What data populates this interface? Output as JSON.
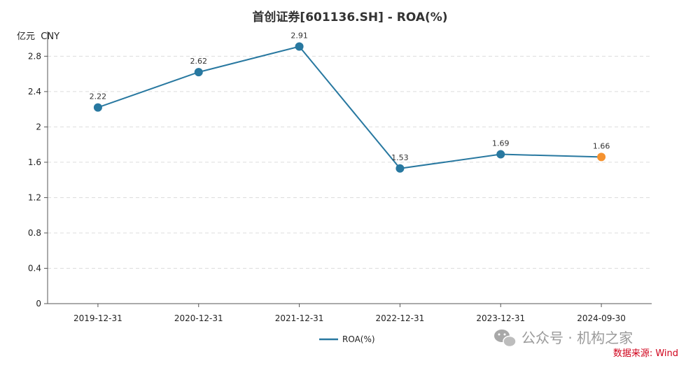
{
  "chart_data": {
    "type": "line",
    "title": "首创证券[601136.SH] - ROA(%)",
    "unit_label": "亿元  CNY",
    "categories": [
      "2019-12-31",
      "2020-12-31",
      "2021-12-31",
      "2022-12-31",
      "2023-12-31",
      "2024-09-30"
    ],
    "series": [
      {
        "name": "ROA(%)",
        "values": [
          2.22,
          2.62,
          2.91,
          1.53,
          1.69,
          1.66
        ],
        "color": "#2878a0",
        "highlight_last_color": "#f5922f"
      }
    ],
    "y_ticks": [
      0,
      0.4,
      0.8,
      1.2,
      1.6,
      2,
      2.4,
      2.8
    ],
    "y_tick_labels": [
      "0",
      "0.4",
      "0.8",
      "1.2",
      "1.6",
      "2",
      "2.4",
      "2.8"
    ],
    "ylim": [
      0,
      3.08
    ],
    "grid": true,
    "legend_position": "bottom-center"
  },
  "watermark": {
    "text": "公众号 · 机构之家",
    "icon": "wechat-icon"
  },
  "source": {
    "text": "数据来源: Wind"
  },
  "colors": {
    "axis": "#555555",
    "grid": "#dddddd",
    "source": "#d0021b"
  }
}
